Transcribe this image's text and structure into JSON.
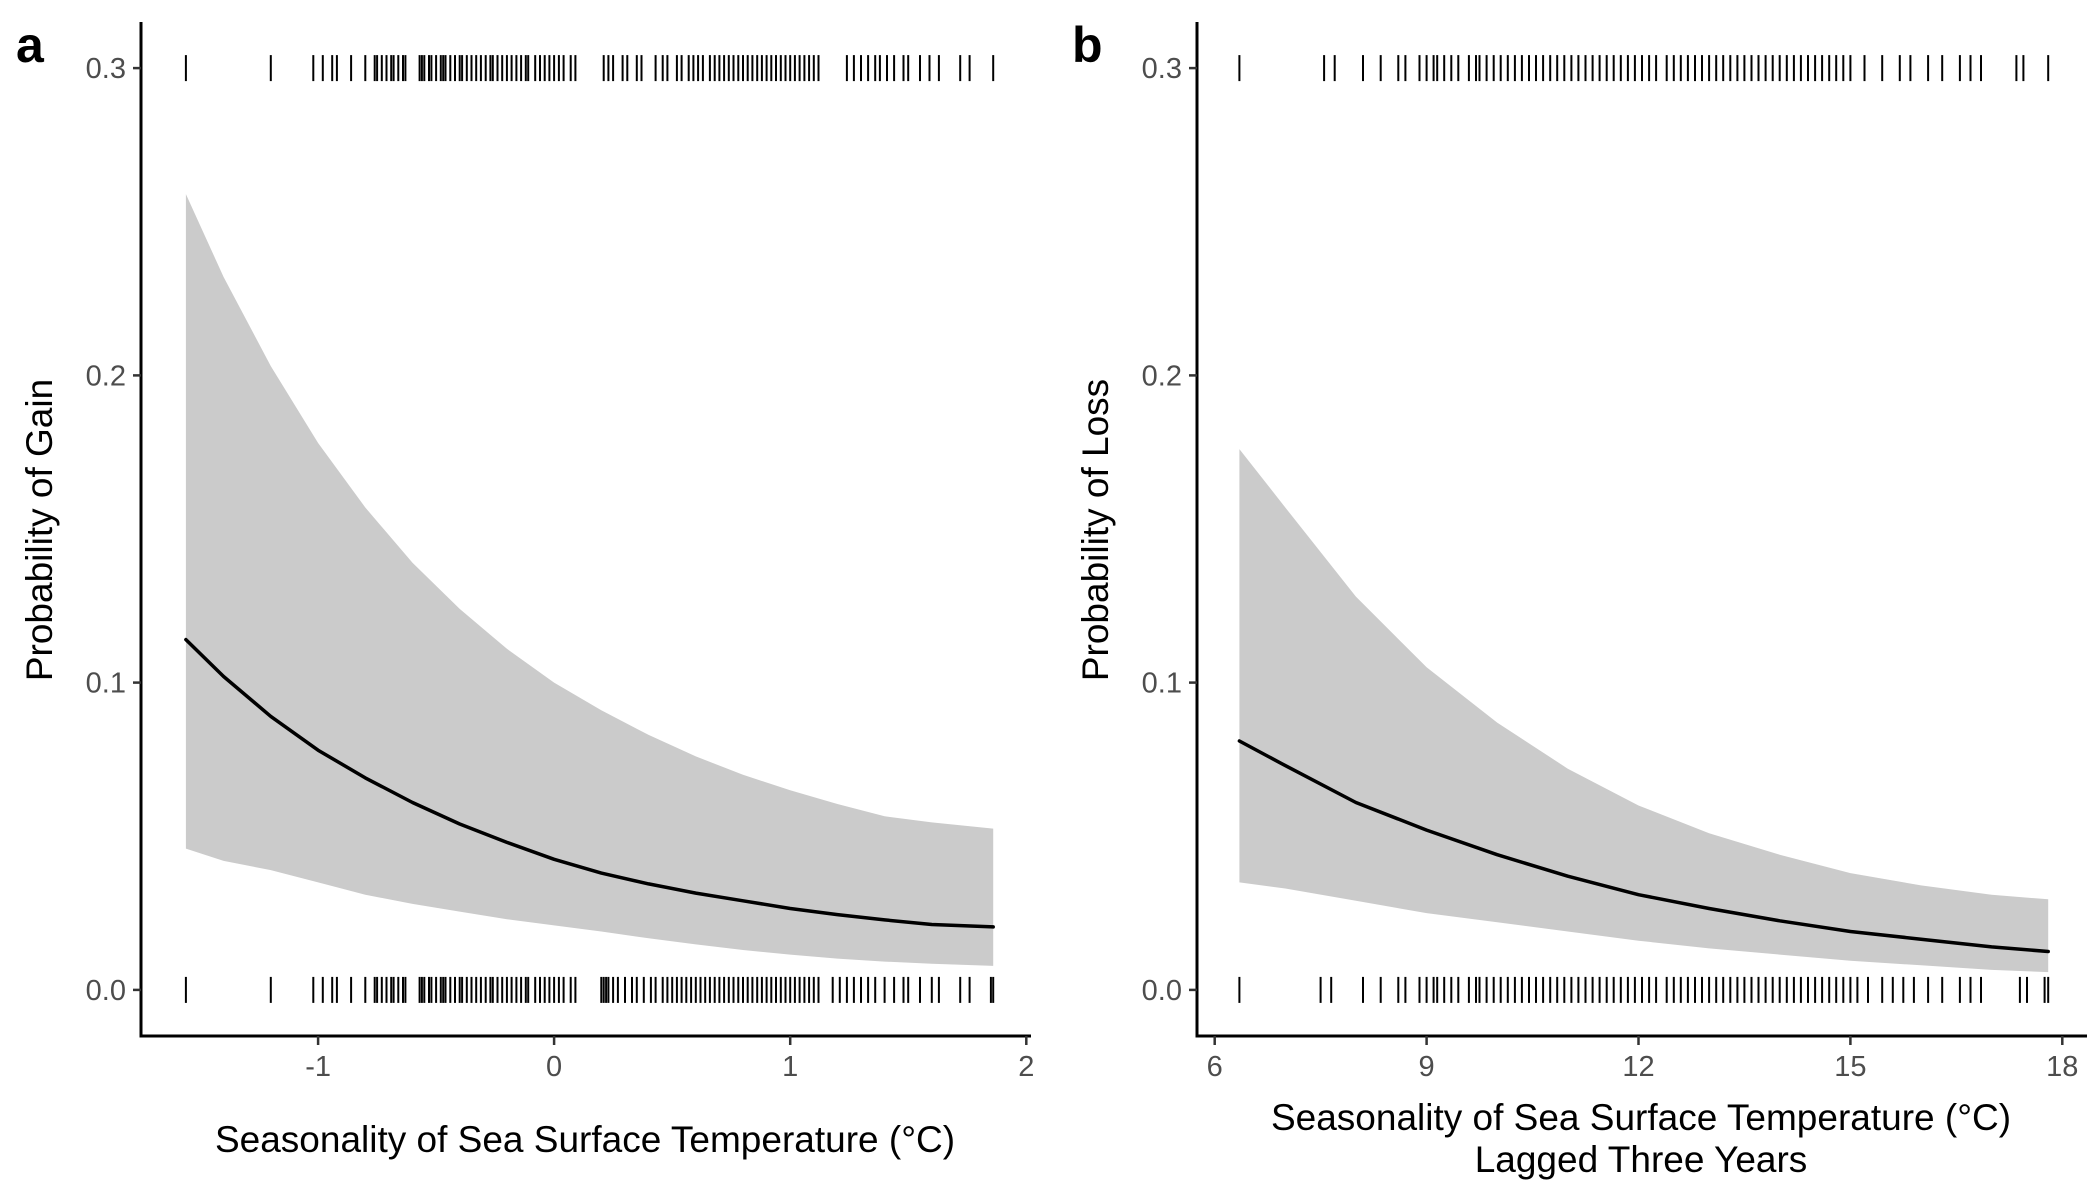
{
  "colors": {
    "band": "#cbcbcb",
    "line": "#000000",
    "axis": "#000000",
    "rug": "#000000"
  },
  "chart_data": [
    {
      "type": "line",
      "panel": "a",
      "title": "",
      "xlabel": "Seasonality of Sea Surface Temperature (°C)",
      "xlabel_line2": "",
      "ylabel": "Probability of Gain",
      "xlim": [
        -1.75,
        2.02
      ],
      "ylim": [
        -0.015,
        0.315
      ],
      "xticks": [
        -1,
        0,
        1,
        2
      ],
      "xtick_labels": [
        "-1",
        "0",
        "1",
        "2"
      ],
      "yticks": [
        0.0,
        0.1,
        0.2,
        0.3
      ],
      "ytick_labels": [
        "0.0",
        "0.1",
        "0.2",
        "0.3"
      ],
      "grid": false,
      "series": [
        {
          "x": [
            -1.56,
            -1.4,
            -1.2,
            -1.0,
            -0.8,
            -0.6,
            -0.4,
            -0.2,
            0.0,
            0.2,
            0.4,
            0.6,
            0.8,
            1.0,
            1.2,
            1.4,
            1.6,
            1.86
          ],
          "y": [
            0.114,
            0.102,
            0.089,
            0.078,
            0.069,
            0.061,
            0.054,
            0.048,
            0.0425,
            0.038,
            0.0345,
            0.0315,
            0.029,
            0.0265,
            0.0245,
            0.0228,
            0.0213,
            0.0205
          ],
          "lower": [
            0.046,
            0.042,
            0.039,
            0.035,
            0.031,
            0.028,
            0.0255,
            0.023,
            0.021,
            0.019,
            0.0168,
            0.0148,
            0.013,
            0.0115,
            0.0102,
            0.0092,
            0.0085,
            0.0078
          ],
          "upper": [
            0.259,
            0.232,
            0.203,
            0.178,
            0.157,
            0.139,
            0.124,
            0.111,
            0.1,
            0.091,
            0.083,
            0.076,
            0.07,
            0.065,
            0.0605,
            0.0565,
            0.0545,
            0.0525
          ]
        }
      ],
      "rug_top": [
        -1.56,
        -1.2,
        -1.02,
        -0.98,
        -0.94,
        -0.92,
        -0.86,
        -0.8,
        -0.76,
        -0.75,
        -0.73,
        -0.71,
        -0.69,
        -0.68,
        -0.66,
        -0.64,
        -0.63,
        -0.57,
        -0.56,
        -0.55,
        -0.53,
        -0.52,
        -0.5,
        -0.48,
        -0.47,
        -0.46,
        -0.44,
        -0.42,
        -0.4,
        -0.39,
        -0.37,
        -0.35,
        -0.33,
        -0.31,
        -0.29,
        -0.27,
        -0.26,
        -0.24,
        -0.22,
        -0.2,
        -0.18,
        -0.16,
        -0.14,
        -0.12,
        -0.11,
        -0.08,
        -0.06,
        -0.04,
        -0.02,
        0.0,
        0.02,
        0.04,
        0.07,
        0.09,
        0.21,
        0.23,
        0.25,
        0.29,
        0.31,
        0.35,
        0.37,
        0.43,
        0.46,
        0.48,
        0.52,
        0.54,
        0.57,
        0.59,
        0.61,
        0.63,
        0.66,
        0.68,
        0.7,
        0.72,
        0.74,
        0.76,
        0.78,
        0.8,
        0.82,
        0.84,
        0.86,
        0.88,
        0.9,
        0.92,
        0.94,
        0.96,
        0.98,
        1.0,
        1.02,
        1.04,
        1.06,
        1.08,
        1.1,
        1.12,
        1.24,
        1.27,
        1.3,
        1.33,
        1.36,
        1.38,
        1.41,
        1.44,
        1.48,
        1.5,
        1.55,
        1.59,
        1.63,
        1.72,
        1.76,
        1.86
      ],
      "rug_bottom": [
        -1.56,
        -1.2,
        -1.02,
        -0.98,
        -0.94,
        -0.92,
        -0.86,
        -0.8,
        -0.76,
        -0.75,
        -0.73,
        -0.71,
        -0.69,
        -0.68,
        -0.66,
        -0.64,
        -0.63,
        -0.57,
        -0.56,
        -0.55,
        -0.53,
        -0.52,
        -0.5,
        -0.48,
        -0.47,
        -0.46,
        -0.44,
        -0.42,
        -0.4,
        -0.39,
        -0.37,
        -0.35,
        -0.33,
        -0.31,
        -0.29,
        -0.27,
        -0.26,
        -0.24,
        -0.22,
        -0.2,
        -0.18,
        -0.16,
        -0.14,
        -0.12,
        -0.11,
        -0.08,
        -0.06,
        -0.04,
        -0.02,
        0.0,
        0.02,
        0.04,
        0.07,
        0.09,
        0.2,
        0.21,
        0.22,
        0.23,
        0.25,
        0.27,
        0.3,
        0.33,
        0.35,
        0.38,
        0.41,
        0.43,
        0.46,
        0.48,
        0.5,
        0.52,
        0.54,
        0.56,
        0.58,
        0.6,
        0.62,
        0.64,
        0.66,
        0.68,
        0.7,
        0.72,
        0.74,
        0.76,
        0.78,
        0.8,
        0.82,
        0.84,
        0.86,
        0.88,
        0.9,
        0.92,
        0.94,
        0.96,
        0.98,
        1.0,
        1.02,
        1.04,
        1.06,
        1.08,
        1.1,
        1.12,
        1.18,
        1.21,
        1.24,
        1.27,
        1.3,
        1.33,
        1.36,
        1.4,
        1.44,
        1.48,
        1.5,
        1.55,
        1.6,
        1.63,
        1.72,
        1.76,
        1.85,
        1.86
      ]
    },
    {
      "type": "line",
      "panel": "b",
      "title": "",
      "xlabel": "Seasonality of Sea Surface Temperature (°C)",
      "xlabel_line2": "Lagged Three Years",
      "ylabel": "Probability of Loss",
      "xlim": [
        5.75,
        18.35
      ],
      "ylim": [
        -0.015,
        0.315
      ],
      "xticks": [
        6,
        9,
        12,
        15,
        18
      ],
      "xtick_labels": [
        "6",
        "9",
        "12",
        "15",
        "18"
      ],
      "yticks": [
        0.0,
        0.1,
        0.2,
        0.3
      ],
      "ytick_labels": [
        "0.0",
        "0.1",
        "0.2",
        "0.3"
      ],
      "grid": false,
      "series": [
        {
          "x": [
            6.35,
            7,
            8,
            9,
            10,
            11,
            12,
            13,
            14,
            15,
            16,
            17,
            17.8
          ],
          "y": [
            0.081,
            0.073,
            0.061,
            0.052,
            0.044,
            0.037,
            0.031,
            0.0265,
            0.0225,
            0.019,
            0.0165,
            0.014,
            0.0125
          ],
          "lower": [
            0.035,
            0.033,
            0.029,
            0.025,
            0.022,
            0.019,
            0.016,
            0.0135,
            0.0115,
            0.0095,
            0.008,
            0.0065,
            0.0058
          ],
          "upper": [
            0.176,
            0.157,
            0.128,
            0.105,
            0.087,
            0.072,
            0.06,
            0.051,
            0.044,
            0.038,
            0.034,
            0.031,
            0.0295
          ]
        }
      ],
      "rug_top": [
        6.35,
        7.55,
        7.7,
        8.1,
        8.35,
        8.6,
        8.7,
        8.9,
        9.0,
        9.1,
        9.15,
        9.25,
        9.35,
        9.45,
        9.6,
        9.7,
        9.75,
        9.85,
        9.95,
        10.05,
        10.15,
        10.25,
        10.35,
        10.45,
        10.55,
        10.65,
        10.75,
        10.85,
        10.95,
        11.05,
        11.15,
        11.25,
        11.35,
        11.45,
        11.55,
        11.65,
        11.75,
        11.85,
        11.95,
        12.05,
        12.15,
        12.25,
        12.4,
        12.5,
        12.6,
        12.7,
        12.8,
        12.9,
        13.0,
        13.1,
        13.2,
        13.3,
        13.4,
        13.5,
        13.6,
        13.7,
        13.8,
        13.9,
        14.0,
        14.1,
        14.2,
        14.3,
        14.4,
        14.5,
        14.6,
        14.7,
        14.8,
        14.9,
        15.0,
        15.2,
        15.45,
        15.7,
        15.85,
        16.1,
        16.3,
        16.55,
        16.7,
        16.85,
        17.35,
        17.45,
        17.8
      ],
      "rug_bottom": [
        6.35,
        7.5,
        7.65,
        8.1,
        8.35,
        8.6,
        8.7,
        8.9,
        9.0,
        9.1,
        9.15,
        9.25,
        9.35,
        9.45,
        9.6,
        9.7,
        9.75,
        9.85,
        9.95,
        10.05,
        10.15,
        10.25,
        10.35,
        10.45,
        10.55,
        10.65,
        10.75,
        10.85,
        10.95,
        11.05,
        11.15,
        11.25,
        11.35,
        11.45,
        11.55,
        11.65,
        11.75,
        11.85,
        11.95,
        12.05,
        12.15,
        12.25,
        12.4,
        12.5,
        12.6,
        12.7,
        12.8,
        12.9,
        13.0,
        13.1,
        13.2,
        13.3,
        13.4,
        13.5,
        13.6,
        13.7,
        13.8,
        13.9,
        14.0,
        14.1,
        14.2,
        14.3,
        14.4,
        14.5,
        14.6,
        14.7,
        14.8,
        14.9,
        15.0,
        15.1,
        15.25,
        15.45,
        15.6,
        15.75,
        15.9,
        16.1,
        16.3,
        16.55,
        16.7,
        16.85,
        17.4,
        17.5,
        17.75,
        17.8
      ]
    }
  ]
}
